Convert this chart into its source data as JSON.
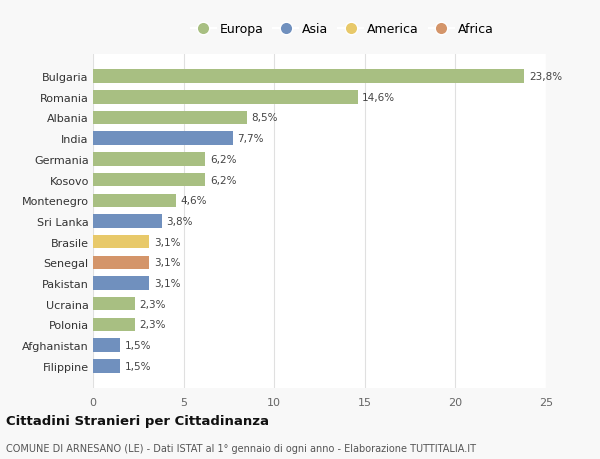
{
  "categories": [
    "Filippine",
    "Afghanistan",
    "Polonia",
    "Ucraina",
    "Pakistan",
    "Senegal",
    "Brasile",
    "Sri Lanka",
    "Montenegro",
    "Kosovo",
    "Germania",
    "India",
    "Albania",
    "Romania",
    "Bulgaria"
  ],
  "values": [
    1.5,
    1.5,
    2.3,
    2.3,
    3.1,
    3.1,
    3.1,
    3.8,
    4.6,
    6.2,
    6.2,
    7.7,
    8.5,
    14.6,
    23.8
  ],
  "labels": [
    "1,5%",
    "1,5%",
    "2,3%",
    "2,3%",
    "3,1%",
    "3,1%",
    "3,1%",
    "3,8%",
    "4,6%",
    "6,2%",
    "6,2%",
    "7,7%",
    "8,5%",
    "14,6%",
    "23,8%"
  ],
  "colors": [
    "#7090be",
    "#7090be",
    "#a8bf82",
    "#a8bf82",
    "#7090be",
    "#d4956a",
    "#e8c96a",
    "#7090be",
    "#a8bf82",
    "#a8bf82",
    "#a8bf82",
    "#7090be",
    "#a8bf82",
    "#a8bf82",
    "#a8bf82"
  ],
  "legend_labels": [
    "Europa",
    "Asia",
    "America",
    "Africa"
  ],
  "legend_colors": [
    "#a8bf82",
    "#7090be",
    "#e8c96a",
    "#d4956a"
  ],
  "title": "Cittadini Stranieri per Cittadinanza",
  "subtitle": "COMUNE DI ARNESANO (LE) - Dati ISTAT al 1° gennaio di ogni anno - Elaborazione TUTTITALIA.IT",
  "xlim": [
    0,
    25
  ],
  "xticks": [
    0,
    5,
    10,
    15,
    20,
    25
  ],
  "bg_color": "#f8f8f8",
  "plot_bg_color": "#ffffff",
  "grid_color": "#e0e0e0"
}
